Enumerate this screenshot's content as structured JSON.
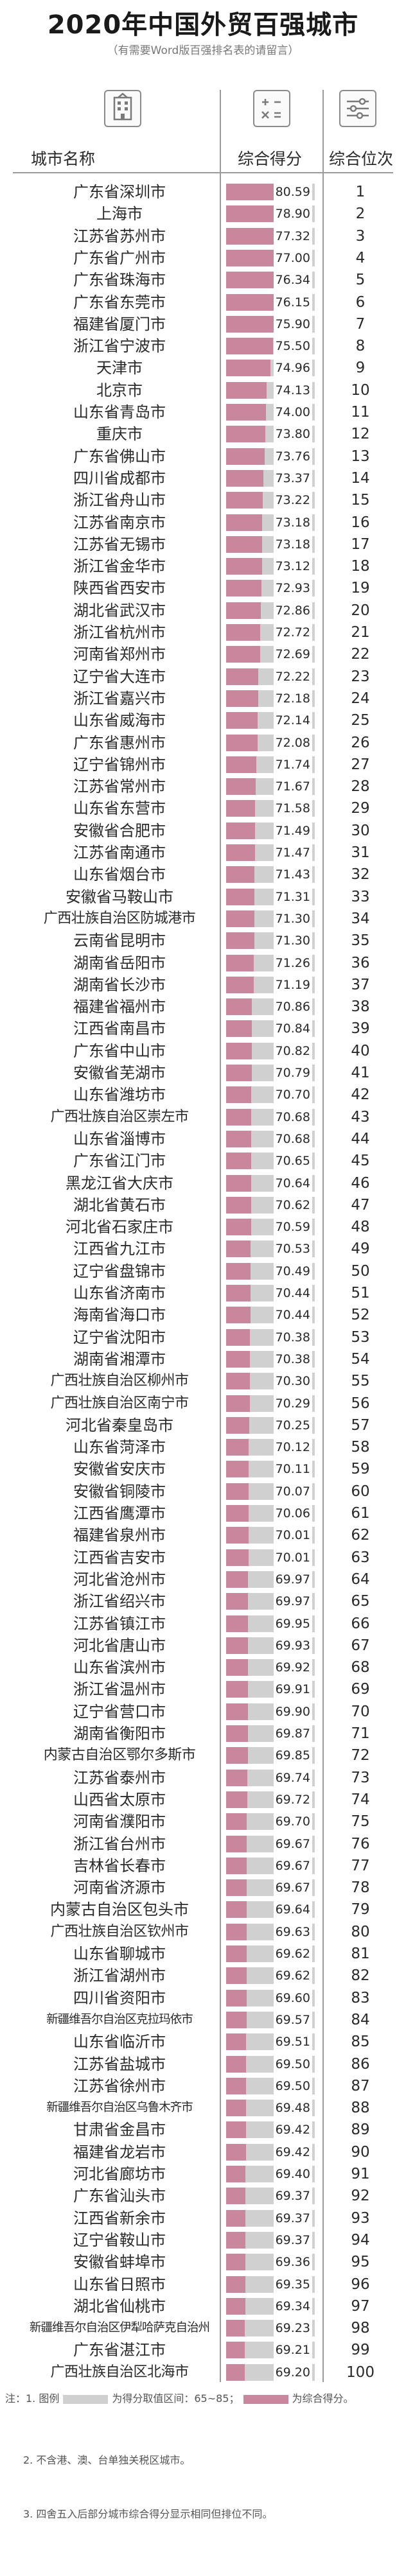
{
  "title": "2020年中国外贸百强城市",
  "subtitle": "（有需要Word版百强排名表的请留言）",
  "columns": {
    "city": "城市名称",
    "score": "综合得分",
    "rank": "综合位次"
  },
  "icons": {
    "city": "building-icon",
    "score": "calculator-icon",
    "rank": "sliders-icon"
  },
  "colors": {
    "bar_fill": "#c8879c",
    "bar_track": "#d0d0d0"
  },
  "chart_data": {
    "type": "bar",
    "title": "2020年中国外贸百强城市",
    "xlabel": "城市名称",
    "ylabel": "综合得分",
    "ylim": [
      65,
      85
    ],
    "categories": [
      "广东省深圳市",
      "上海市",
      "江苏省苏州市",
      "广东省广州市",
      "广东省珠海市",
      "广东省东莞市",
      "福建省厦门市",
      "浙江省宁波市",
      "天津市",
      "北京市",
      "山东省青岛市",
      "重庆市",
      "广东省佛山市",
      "四川省成都市",
      "浙江省舟山市",
      "江苏省南京市",
      "江苏省无锡市",
      "浙江省金华市",
      "陕西省西安市",
      "湖北省武汉市",
      "浙江省杭州市",
      "河南省郑州市",
      "辽宁省大连市",
      "浙江省嘉兴市",
      "山东省威海市",
      "广东省惠州市",
      "辽宁省锦州市",
      "江苏省常州市",
      "山东省东营市",
      "安徽省合肥市",
      "江苏省南通市",
      "山东省烟台市",
      "安徽省马鞍山市",
      "广西壮族自治区防城港市",
      "云南省昆明市",
      "湖南省岳阳市",
      "湖南省长沙市",
      "福建省福州市",
      "江西省南昌市",
      "广东省中山市",
      "安徽省芜湖市",
      "山东省潍坊市",
      "广西壮族自治区崇左市",
      "山东省淄博市",
      "广东省江门市",
      "黑龙江省大庆市",
      "湖北省黄石市",
      "河北省石家庄市",
      "江西省九江市",
      "辽宁省盘锦市",
      "山东省济南市",
      "海南省海口市",
      "辽宁省沈阳市",
      "湖南省湘潭市",
      "广西壮族自治区柳州市",
      "广西壮族自治区南宁市",
      "河北省秦皇岛市",
      "山东省菏泽市",
      "安徽省安庆市",
      "安徽省铜陵市",
      "江西省鹰潭市",
      "福建省泉州市",
      "江西省吉安市",
      "河北省沧州市",
      "浙江省绍兴市",
      "江苏省镇江市",
      "河北省唐山市",
      "山东省滨州市",
      "浙江省温州市",
      "辽宁省营口市",
      "湖南省衡阳市",
      "内蒙古自治区鄂尔多斯市",
      "江苏省泰州市",
      "山西省太原市",
      "河南省濮阳市",
      "浙江省台州市",
      "吉林省长春市",
      "河南省济源市",
      "内蒙古自治区包头市",
      "广西壮族自治区钦州市",
      "山东省聊城市",
      "浙江省湖州市",
      "四川省资阳市",
      "新疆维吾尔自治区克拉玛依市",
      "山东省临沂市",
      "江苏省盐城市",
      "江苏省徐州市",
      "新疆维吾尔自治区乌鲁木齐市",
      "甘肃省金昌市",
      "福建省龙岩市",
      "河北省廊坊市",
      "广东省汕头市",
      "江西省新余市",
      "辽宁省鞍山市",
      "安徽省蚌埠市",
      "山东省日照市",
      "湖北省仙桃市",
      "新疆维吾尔自治区伊犁哈萨克自治州",
      "广东省湛江市",
      "广西壮族自治区北海市"
    ],
    "series": [
      {
        "values": [
          80.59,
          78.9,
          77.32,
          77.0,
          76.34,
          76.15,
          75.9,
          75.5,
          74.96,
          74.13,
          74.0,
          73.8,
          73.76,
          73.37,
          73.22,
          73.18,
          73.18,
          73.12,
          72.93,
          72.86,
          72.72,
          72.69,
          72.22,
          72.18,
          72.14,
          72.08,
          71.74,
          71.67,
          71.58,
          71.49,
          71.47,
          71.43,
          71.31,
          71.3,
          71.3,
          71.26,
          71.19,
          70.86,
          70.84,
          70.82,
          70.79,
          70.7,
          70.68,
          70.68,
          70.65,
          70.64,
          70.62,
          70.59,
          70.53,
          70.49,
          70.44,
          70.44,
          70.38,
          70.38,
          70.3,
          70.29,
          70.25,
          70.12,
          70.11,
          70.07,
          70.06,
          70.01,
          70.01,
          69.97,
          69.97,
          69.95,
          69.93,
          69.92,
          69.91,
          69.9,
          69.87,
          69.85,
          69.74,
          69.72,
          69.7,
          69.67,
          69.67,
          69.67,
          69.64,
          69.63,
          69.62,
          69.62,
          69.6,
          69.57,
          69.51,
          69.5,
          69.5,
          69.48,
          69.42,
          69.42,
          69.4,
          69.37,
          69.37,
          69.37,
          69.36,
          69.35,
          69.34,
          69.23,
          69.21,
          69.2
        ]
      }
    ],
    "ranks": [
      1,
      2,
      3,
      4,
      5,
      6,
      7,
      8,
      9,
      10,
      11,
      12,
      13,
      14,
      15,
      16,
      17,
      18,
      19,
      20,
      21,
      22,
      23,
      24,
      25,
      26,
      27,
      28,
      29,
      30,
      31,
      32,
      33,
      34,
      35,
      36,
      37,
      38,
      39,
      40,
      41,
      42,
      43,
      44,
      45,
      46,
      47,
      48,
      49,
      50,
      51,
      52,
      53,
      54,
      55,
      56,
      57,
      58,
      59,
      60,
      61,
      62,
      63,
      64,
      65,
      66,
      67,
      68,
      69,
      70,
      71,
      72,
      73,
      74,
      75,
      76,
      77,
      78,
      79,
      80,
      81,
      82,
      83,
      84,
      85,
      86,
      87,
      88,
      89,
      90,
      91,
      92,
      93,
      94,
      95,
      96,
      97,
      98,
      99,
      100
    ]
  },
  "notes": {
    "line1_prefix": "注：1. 图例",
    "line1_range": "为得分取值区间：65~85；",
    "line1_score": "为综合得分。",
    "line2": "2. 不含港、澳、台单独关税区城市。",
    "line3": "3. 四舍五入后部分城市综合得分显示相同但排位不同。"
  }
}
